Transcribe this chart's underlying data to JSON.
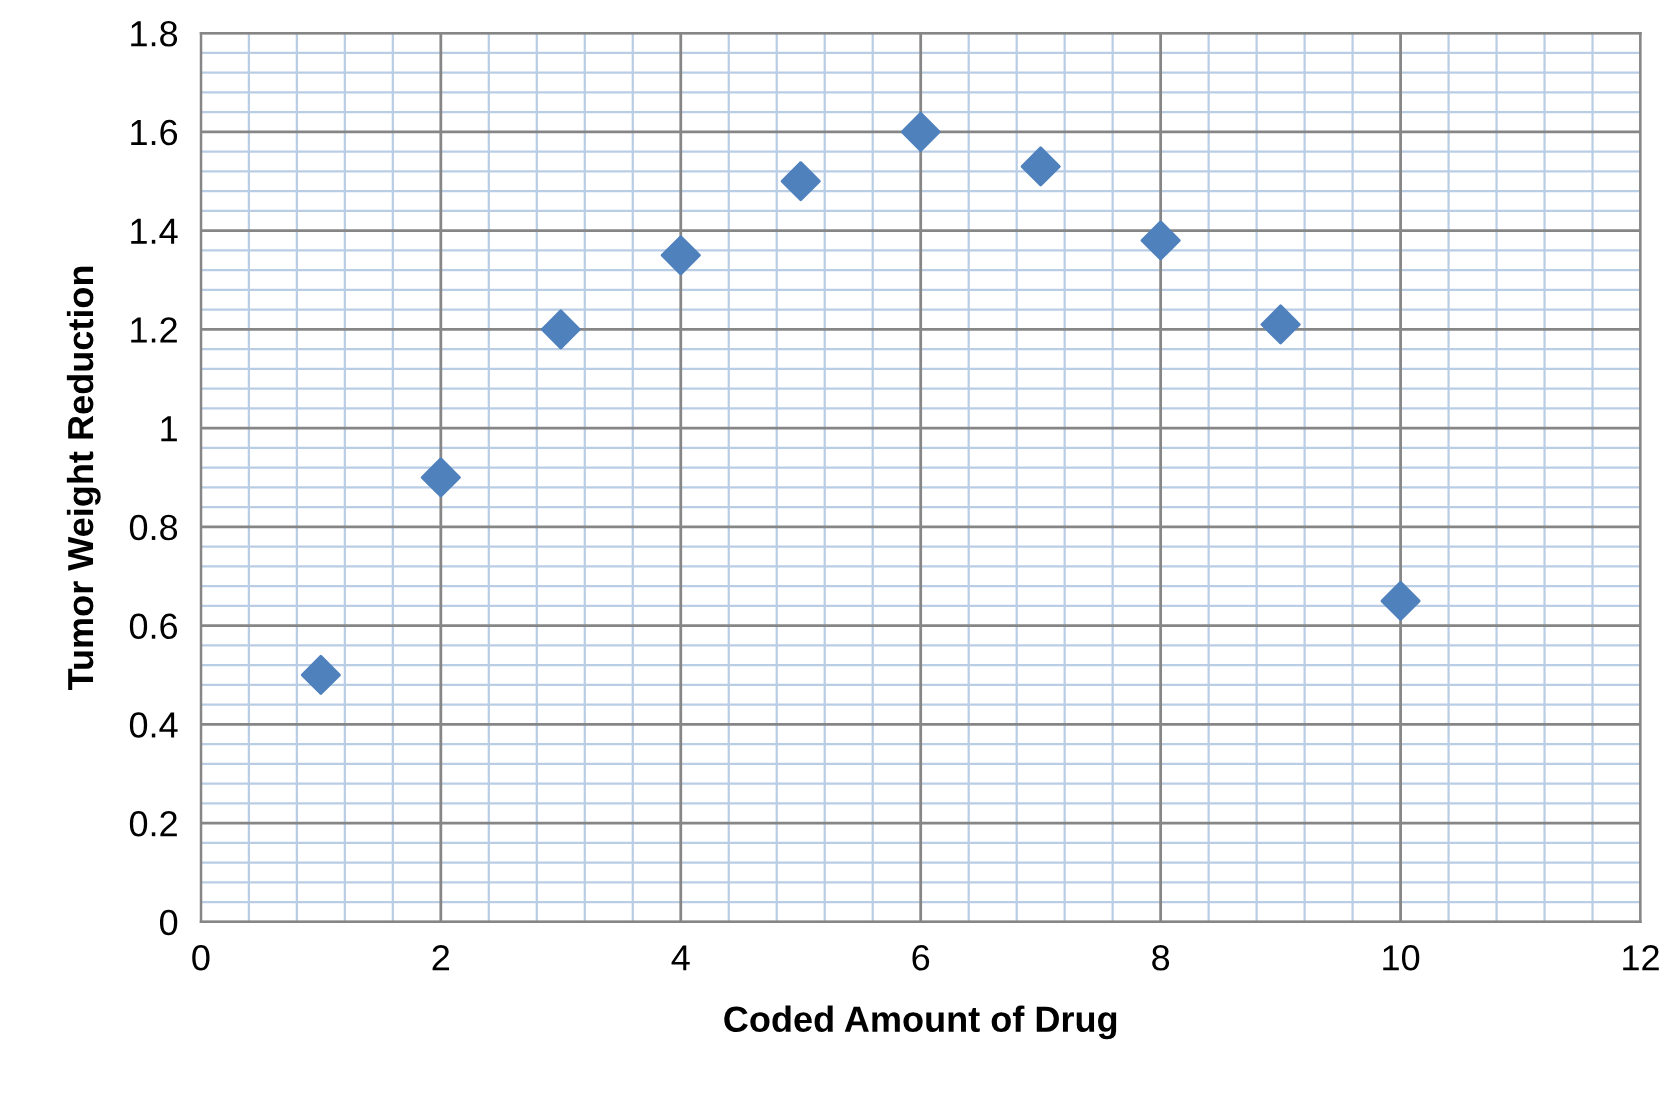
{
  "chart_data": {
    "type": "scatter",
    "xlabel": "Coded Amount of Drug",
    "ylabel": "Tumor Weight Reduction",
    "x": [
      1,
      2,
      3,
      4,
      5,
      6,
      7,
      8,
      9,
      10
    ],
    "series": [
      {
        "color": "#4f81bd",
        "values": [
          0.5,
          0.9,
          1.2,
          1.35,
          1.5,
          1.6,
          1.53,
          1.38,
          1.21,
          0.65
        ]
      }
    ],
    "xlim": [
      0,
      12
    ],
    "xticks": [
      0,
      {
        "value": 0.4,
        "label": null
      },
      {
        "value": 0.8,
        "label": null
      },
      {
        "value": 1.2,
        "label": null
      },
      {
        "value": 1.6,
        "label": null
      },
      2,
      {
        "value": 2.4,
        "label": null
      },
      {
        "value": 2.8,
        "label": null
      },
      {
        "value": 3.2,
        "label": null
      },
      {
        "value": 3.6,
        "label": null
      },
      4,
      {
        "value": 4.4,
        "label": null
      },
      {
        "value": 4.8,
        "label": null
      },
      {
        "value": 5.2,
        "label": null
      },
      {
        "value": 5.6,
        "label": null
      },
      6,
      {
        "value": 6.4,
        "label": null
      },
      {
        "value": 6.8,
        "label": null
      },
      {
        "value": 7.2,
        "label": null
      },
      {
        "value": 7.6,
        "label": null
      },
      8,
      {
        "value": 8.4,
        "label": null
      },
      {
        "value": 8.8,
        "label": null
      },
      {
        "value": 9.2,
        "label": null
      },
      {
        "value": 9.6,
        "label": null
      },
      10,
      {
        "value": 10.4,
        "label": null
      },
      {
        "value": 10.8,
        "label": null
      },
      {
        "value": 11.2,
        "label": null
      },
      {
        "value": 11.6,
        "label": null
      },
      12
    ],
    "ylim": [
      0,
      1.8
    ],
    "yticks": [
      0,
      {
        "value": 0.04,
        "label": null
      },
      {
        "value": 0.08,
        "label": null
      },
      {
        "value": 0.12,
        "label": null
      },
      {
        "value": 0.16,
        "label": null
      },
      0.2,
      {
        "value": 0.24,
        "label": null
      },
      {
        "value": 0.28,
        "label": null
      },
      {
        "value": 0.32,
        "label": null
      },
      {
        "value": 0.36,
        "label": null
      },
      0.4,
      {
        "value": 0.44,
        "label": null
      },
      {
        "value": 0.48,
        "label": null
      },
      {
        "value": 0.52,
        "label": null
      },
      {
        "value": 0.56,
        "label": null
      },
      0.6,
      {
        "value": 0.64,
        "label": null
      },
      {
        "value": 0.68,
        "label": null
      },
      {
        "value": 0.72,
        "label": null
      },
      {
        "value": 0.76,
        "label": null
      },
      0.8,
      {
        "value": 0.84,
        "label": null
      },
      {
        "value": 0.88,
        "label": null
      },
      {
        "value": 0.92,
        "label": null
      },
      {
        "value": 0.96,
        "label": null
      },
      1,
      {
        "value": 1.04,
        "label": null
      },
      {
        "value": 1.08,
        "label": null
      },
      {
        "value": 1.12,
        "label": null
      },
      {
        "value": 1.16,
        "label": null
      },
      1.2,
      {
        "value": 1.24,
        "label": null
      },
      {
        "value": 1.28,
        "label": null
      },
      {
        "value": 1.32,
        "label": null
      },
      {
        "value": 1.36,
        "label": null
      },
      1.4,
      {
        "value": 1.44,
        "label": null
      },
      {
        "value": 1.48,
        "label": null
      },
      {
        "value": 1.52,
        "label": null
      },
      {
        "value": 1.56,
        "label": null
      },
      1.6,
      {
        "value": 1.64,
        "label": null
      },
      {
        "value": 1.68,
        "label": null
      },
      {
        "value": 1.72,
        "label": null
      },
      {
        "value": 1.76,
        "label": null
      },
      1.8
    ],
    "grid": true,
    "marker": "diamond"
  }
}
